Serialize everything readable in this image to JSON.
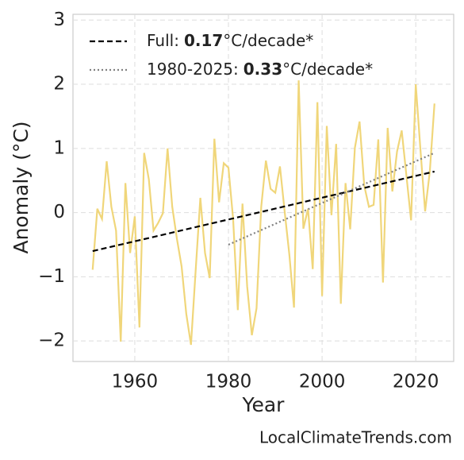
{
  "chart_data": {
    "type": "line",
    "ylabel": "Anomaly (°C)",
    "xlabel": "Year",
    "footer": "LocalClimateTrends.com",
    "x": [
      1951,
      1952,
      1953,
      1954,
      1955,
      1956,
      1957,
      1958,
      1959,
      1960,
      1961,
      1962,
      1963,
      1964,
      1965,
      1966,
      1967,
      1968,
      1969,
      1970,
      1971,
      1972,
      1973,
      1974,
      1975,
      1976,
      1977,
      1978,
      1979,
      1980,
      1981,
      1982,
      1983,
      1984,
      1985,
      1986,
      1987,
      1988,
      1989,
      1990,
      1991,
      1992,
      1993,
      1994,
      1995,
      1996,
      1997,
      1998,
      1999,
      2000,
      2001,
      2002,
      2003,
      2004,
      2005,
      2006,
      2007,
      2008,
      2009,
      2010,
      2011,
      2012,
      2013,
      2014,
      2015,
      2016,
      2017,
      2018,
      2019,
      2020,
      2021,
      2022,
      2023,
      2024
    ],
    "series": [
      {
        "color": "#f0d67a",
        "values": [
          -0.89,
          0.06,
          -0.1,
          0.8,
          0.09,
          -0.28,
          -2.01,
          0.46,
          -0.63,
          -0.06,
          -1.79,
          0.93,
          0.52,
          -0.28,
          -0.16,
          -0.01,
          1.0,
          0.09,
          -0.41,
          -0.84,
          -1.58,
          -2.06,
          -0.9,
          0.23,
          -0.63,
          -1.02,
          1.15,
          0.16,
          0.77,
          0.7,
          -0.1,
          -1.52,
          0.14,
          -1.15,
          -1.91,
          -1.49,
          0.09,
          0.81,
          0.37,
          0.31,
          0.72,
          0.02,
          -0.65,
          -1.48,
          2.06,
          -0.25,
          0.06,
          -0.88,
          1.72,
          -1.3,
          1.35,
          -0.04,
          1.07,
          -1.42,
          0.46,
          -0.26,
          1.01,
          1.42,
          0.42,
          0.09,
          0.12,
          1.14,
          -1.09,
          1.32,
          0.33,
          0.95,
          1.28,
          0.58,
          -0.12,
          2.0,
          0.98,
          0.02,
          0.64,
          1.7
        ]
      }
    ],
    "trends": [
      {
        "name": "Full:",
        "slope": 0.17,
        "unit": "°C/decade*",
        "color": "#000000",
        "dash": "dashed",
        "x": [
          1951,
          2024
        ],
        "values": [
          -0.6,
          0.64
        ]
      },
      {
        "name": "1980-2025:",
        "slope": 0.33,
        "unit": "°C/decade*",
        "color": "#808080",
        "dash": "dotted",
        "x": [
          1980,
          2024
        ],
        "values": [
          -0.5,
          0.93
        ]
      }
    ],
    "xlim": [
      1946.8,
      2028.1
    ],
    "ylim": [
      -2.32,
      3.09
    ],
    "xticks": [
      1960,
      1980,
      2000,
      2020
    ],
    "yticks": [
      {
        "value": -2,
        "label": "−2"
      },
      {
        "value": -1,
        "label": "−1"
      },
      0,
      1,
      2,
      3
    ],
    "grid": true
  }
}
